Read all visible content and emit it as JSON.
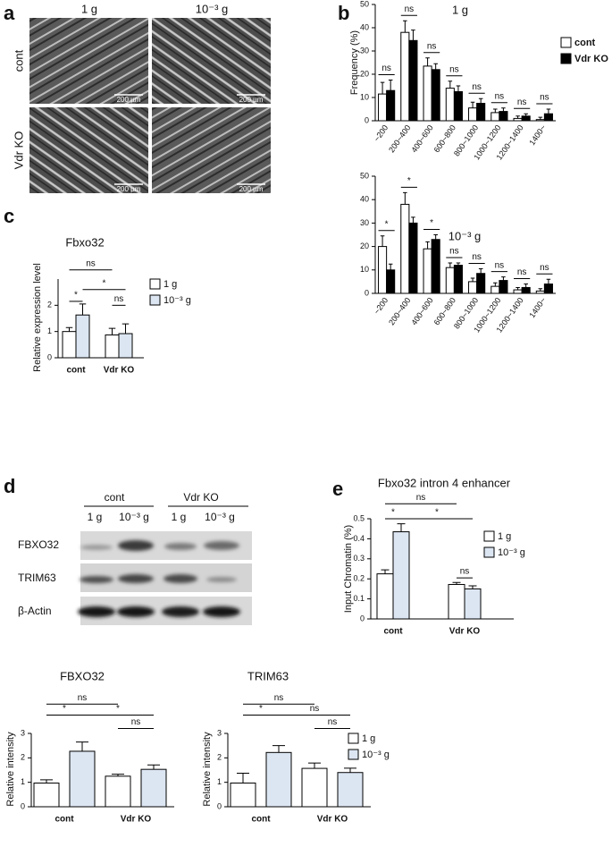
{
  "panel_labels": [
    "a",
    "b",
    "c",
    "d",
    "e"
  ],
  "panel_a": {
    "columns": [
      "1 g",
      "10⁻³ g"
    ],
    "rows": [
      "cont",
      "Vdr KO"
    ],
    "scale_bar": "200 µm"
  },
  "panel_d_blot": {
    "groups": [
      "cont",
      "Vdr KO"
    ],
    "lanes": [
      "1 g",
      "10⁻³ g",
      "1 g",
      "10⁻³ g"
    ],
    "proteins": [
      "FBXO32",
      "TRIM63",
      "β-Actin"
    ]
  },
  "chart_data": [
    {
      "type": "bar",
      "title": "1 g",
      "y_label": "Frequency (%)",
      "categories": [
        "~200",
        "200~400",
        "400~600",
        "600~800",
        "800~1000",
        "1000~1200",
        "1200~1400",
        "1400~"
      ],
      "series": [
        {
          "name": "cont",
          "color": "#ffffff",
          "values": [
            11.5,
            38,
            23.5,
            14,
            5.5,
            3.5,
            1,
            0.5
          ],
          "errors": [
            5,
            5,
            3.5,
            3,
            2.5,
            1.5,
            1,
            1
          ]
        },
        {
          "name": "Vdr KO",
          "color": "#000000",
          "values": [
            13,
            34.5,
            22,
            12.5,
            7.5,
            4,
            2,
            3
          ],
          "errors": [
            4.5,
            4.5,
            2.5,
            2.5,
            2,
            1.5,
            1,
            2
          ]
        }
      ],
      "ylim": [
        0,
        50
      ],
      "yticks": [
        0,
        10,
        20,
        30,
        40,
        50
      ],
      "annotations": [
        "ns",
        "ns",
        "ns",
        "ns",
        "ns",
        "ns",
        "ns",
        "ns"
      ]
    },
    {
      "type": "bar",
      "title": "10⁻³ g",
      "categories": [
        "~200",
        "200~400",
        "400~600",
        "600~800",
        "800~1000",
        "1000~1200",
        "1200~1400",
        "1400~"
      ],
      "series": [
        {
          "color": "#ffffff",
          "values": [
            20,
            38,
            19,
            11,
            5,
            3,
            1.5,
            1
          ],
          "errors": [
            4.5,
            5,
            3,
            2,
            1.5,
            1.5,
            1,
            1
          ]
        },
        {
          "color": "#000000",
          "values": [
            10,
            30,
            23,
            12,
            8.5,
            5.5,
            2.5,
            4
          ],
          "errors": [
            2.5,
            2.5,
            2,
            1,
            2,
            1.5,
            1.5,
            2
          ]
        }
      ],
      "ylim": [
        0,
        50
      ],
      "yticks": [
        0,
        10,
        20,
        30,
        40,
        50
      ],
      "annotations": [
        "*",
        "*",
        "*",
        "ns",
        "ns",
        "ns",
        "ns",
        "ns"
      ]
    },
    {
      "type": "bar",
      "title": "Fbxo32",
      "y_label": "Relative expression level",
      "categories": [
        "cont",
        "Vdr KO"
      ],
      "series": [
        {
          "name": "1 g",
          "color": "#ffffff",
          "values": [
            1.0,
            0.87
          ],
          "errors": [
            0.15,
            0.25
          ]
        },
        {
          "name": "10⁻³ g",
          "color": "#dce6f2",
          "values": [
            1.63,
            0.92
          ],
          "errors": [
            0.42,
            0.37
          ]
        }
      ],
      "ylim": [
        0,
        3
      ],
      "yticks": [
        0,
        1,
        2
      ],
      "annotations": [
        "ns",
        "*",
        "*",
        "ns"
      ]
    },
    {
      "type": "bar",
      "title": "Fbxo32 intron 4 enhancer",
      "y_label": "Input Chromatin (%)",
      "categories": [
        "cont",
        "Vdr KO"
      ],
      "series": [
        {
          "name": "1 g",
          "color": "#ffffff",
          "values": [
            0.225,
            0.172
          ],
          "errors": [
            0.02,
            0.01
          ]
        },
        {
          "name": "10⁻³ g",
          "color": "#dce6f2",
          "values": [
            0.435,
            0.15
          ],
          "errors": [
            0.04,
            0.015
          ]
        }
      ],
      "ylim": [
        0,
        0.5
      ],
      "yticks": [
        0,
        0.1,
        0.2,
        0.3,
        0.4,
        0.5
      ],
      "annotations": [
        "ns",
        "*",
        "*",
        "ns"
      ]
    },
    {
      "type": "bar",
      "title": "FBXO32",
      "y_label": "Relative intensity",
      "categories": [
        "cont",
        "Vdr KO"
      ],
      "series": [
        {
          "color": "#ffffff",
          "values": [
            0.97,
            1.25
          ],
          "errors": [
            0.13,
            0.08
          ]
        },
        {
          "color": "#dce6f2",
          "values": [
            2.27,
            1.53
          ],
          "errors": [
            0.38,
            0.18
          ]
        }
      ],
      "ylim": [
        0,
        3
      ],
      "yticks": [
        0,
        1,
        2,
        3
      ],
      "annotations": [
        "ns",
        "*",
        "*",
        "ns"
      ]
    },
    {
      "type": "bar",
      "title": "TRIM63",
      "y_label": "Relative intensity",
      "categories": [
        "cont",
        "Vdr KO"
      ],
      "series": [
        {
          "name": "1 g",
          "color": "#ffffff",
          "values": [
            0.97,
            1.57
          ],
          "errors": [
            0.4,
            0.22
          ]
        },
        {
          "name": "10⁻³ g",
          "color": "#dce6f2",
          "values": [
            2.22,
            1.4
          ],
          "errors": [
            0.28,
            0.18
          ]
        }
      ],
      "ylim": [
        0,
        3
      ],
      "yticks": [
        0,
        1,
        2,
        3
      ],
      "annotations": [
        "ns",
        "*",
        "ns",
        "ns"
      ]
    }
  ]
}
